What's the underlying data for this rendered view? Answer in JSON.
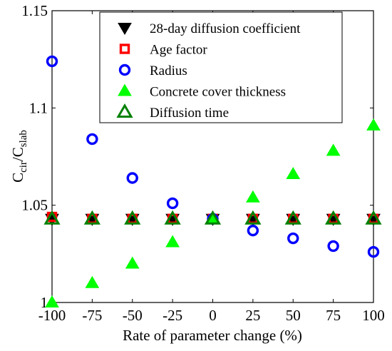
{
  "chart_data": {
    "type": "scatter",
    "xlabel": "Rate of parameter change (%)",
    "ylabel": {
      "main": "C",
      "sub1": "cir",
      "sep": "/C",
      "sub2": "slab"
    },
    "xlim": [
      -100,
      100
    ],
    "ylim": [
      1.0,
      1.15
    ],
    "x_ticks": [
      -100,
      -75,
      -50,
      -25,
      0,
      25,
      50,
      75,
      100
    ],
    "y_ticks": [
      1.0,
      1.05,
      1.1,
      1.15
    ],
    "y_tick_labels": [
      "1",
      "1.05",
      "1.1",
      "1.15"
    ],
    "x": [
      -100,
      -75,
      -50,
      -25,
      0,
      25,
      50,
      75,
      100
    ],
    "legend_position": "top-right",
    "grid": false,
    "series": [
      {
        "name": "28-day diffusion coefficient",
        "marker": "triangle-down",
        "color": "#000000",
        "filled": true,
        "values": [
          1.043,
          1.043,
          1.043,
          1.043,
          1.043,
          1.043,
          1.043,
          1.043,
          1.043
        ]
      },
      {
        "name": "Age factor",
        "marker": "square",
        "color": "#ff0000",
        "filled": false,
        "values": [
          1.044,
          1.043,
          1.043,
          1.043,
          1.043,
          1.043,
          1.043,
          1.043,
          1.043
        ]
      },
      {
        "name": "Radius",
        "marker": "circle",
        "color": "#0000ff",
        "filled": false,
        "values": [
          1.124,
          1.084,
          1.064,
          1.051,
          1.043,
          1.037,
          1.033,
          1.029,
          1.026
        ]
      },
      {
        "name": "Concrete cover thickness",
        "marker": "triangle-up",
        "color": "#00ff00",
        "filled": true,
        "values": [
          1.0,
          1.01,
          1.02,
          1.031,
          1.043,
          1.054,
          1.066,
          1.078,
          1.091
        ]
      },
      {
        "name": "Diffusion time",
        "marker": "triangle-up",
        "color": "#008000",
        "filled": false,
        "values": [
          1.043,
          1.043,
          1.043,
          1.043,
          1.043,
          1.043,
          1.043,
          1.043,
          1.043
        ]
      }
    ]
  }
}
